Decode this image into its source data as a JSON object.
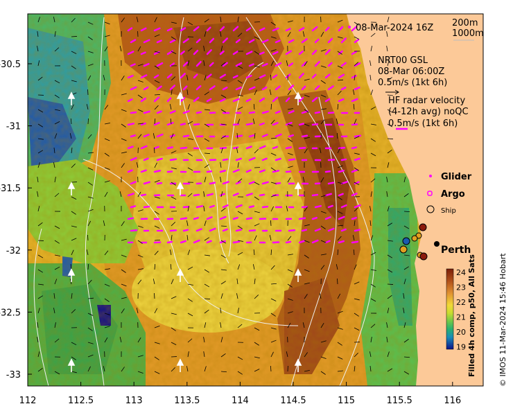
{
  "map": {
    "x_ticks": [
      "112",
      "112.5",
      "113",
      "113.5",
      "114",
      "114.5",
      "115",
      "115.5",
      "116"
    ],
    "y_ticks": [
      "-30.5",
      "-31",
      "-31.5",
      "-32",
      "-32.5",
      "-33"
    ]
  },
  "legend": {
    "date": "08-Mar-2024 16Z",
    "isobath_1": "200m",
    "isobath_2": "1000m",
    "gsl_title": "NRT00 GSL",
    "gsl_time": "08-Mar 06:00Z",
    "gsl_scale": "0.5m/s (1kt 6h)",
    "hf_title": "HF radar velocity",
    "hf_avg": "(4-12h avg) noQC",
    "hf_scale": "0.5m/s (1kt 6h)",
    "glider": "Glider",
    "argo": "Argo",
    "ship": "Ship",
    "city": "Perth"
  },
  "colorbar": {
    "label": "Filled 4h comp, p50, All Sats",
    "ticks": [
      "24",
      "23",
      "22",
      "21",
      "20",
      "19"
    ],
    "colors": [
      "#7a1e08",
      "#a5400f",
      "#c86a12",
      "#e0a020",
      "#ecd030",
      "#d8dc28",
      "#9ed02a",
      "#50c050",
      "#20a880",
      "#1898b0",
      "#1a5ab8",
      "#101090"
    ]
  },
  "copyright": "© IMOS 11-Mar-2024 15:46 Hobart",
  "colors": {
    "land": "#fcc998",
    "hf_vector": "#ff00ff",
    "glider": "#ff00ff",
    "contour": "#f0f0f0"
  }
}
